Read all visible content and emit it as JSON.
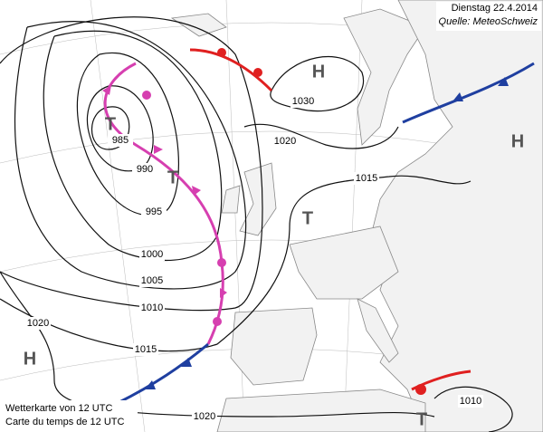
{
  "header": {
    "title": "Dienstag 22.4.2014",
    "source": "Quelle: MeteoSchweiz"
  },
  "footer": {
    "line1": "Wetterkarte von 12 UTC",
    "line2": "Carte du temps de 12 UTC"
  },
  "isobar_labels": [
    985,
    990,
    995,
    1000,
    1005,
    1010,
    1015,
    1020,
    1020,
    1030,
    1020,
    1015,
    1010
  ],
  "centers": [
    "T",
    "T",
    "T",
    "H",
    "H",
    "H",
    "T"
  ]
}
